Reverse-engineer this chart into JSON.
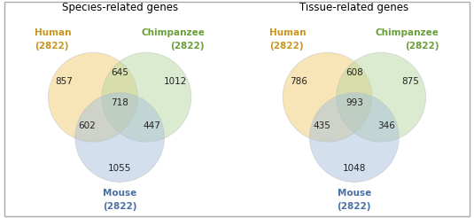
{
  "left_title": "Species-related genes",
  "right_title": "Tissue-related genes",
  "left_venn": {
    "only_human": "857",
    "only_chimp": "1012",
    "only_mouse": "1055",
    "human_chimp": "645",
    "human_mouse": "602",
    "chimp_mouse": "447",
    "all_three": "718"
  },
  "right_venn": {
    "only_human": "786",
    "only_chimp": "875",
    "only_mouse": "1048",
    "human_chimp": "608",
    "human_mouse": "435",
    "chimp_mouse": "346",
    "all_three": "993"
  },
  "human_color": "#F0CC70",
  "chimp_color": "#B8D8A0",
  "mouse_color": "#A8C0DC",
  "human_label_color": "#C8961E",
  "chimp_label_color": "#6A9E3A",
  "mouse_label_color": "#4A6FA5",
  "title_fontsize": 8.5,
  "label_fontsize": 7.5,
  "number_fontsize": 7.5,
  "bg_color": "#FFFFFF"
}
